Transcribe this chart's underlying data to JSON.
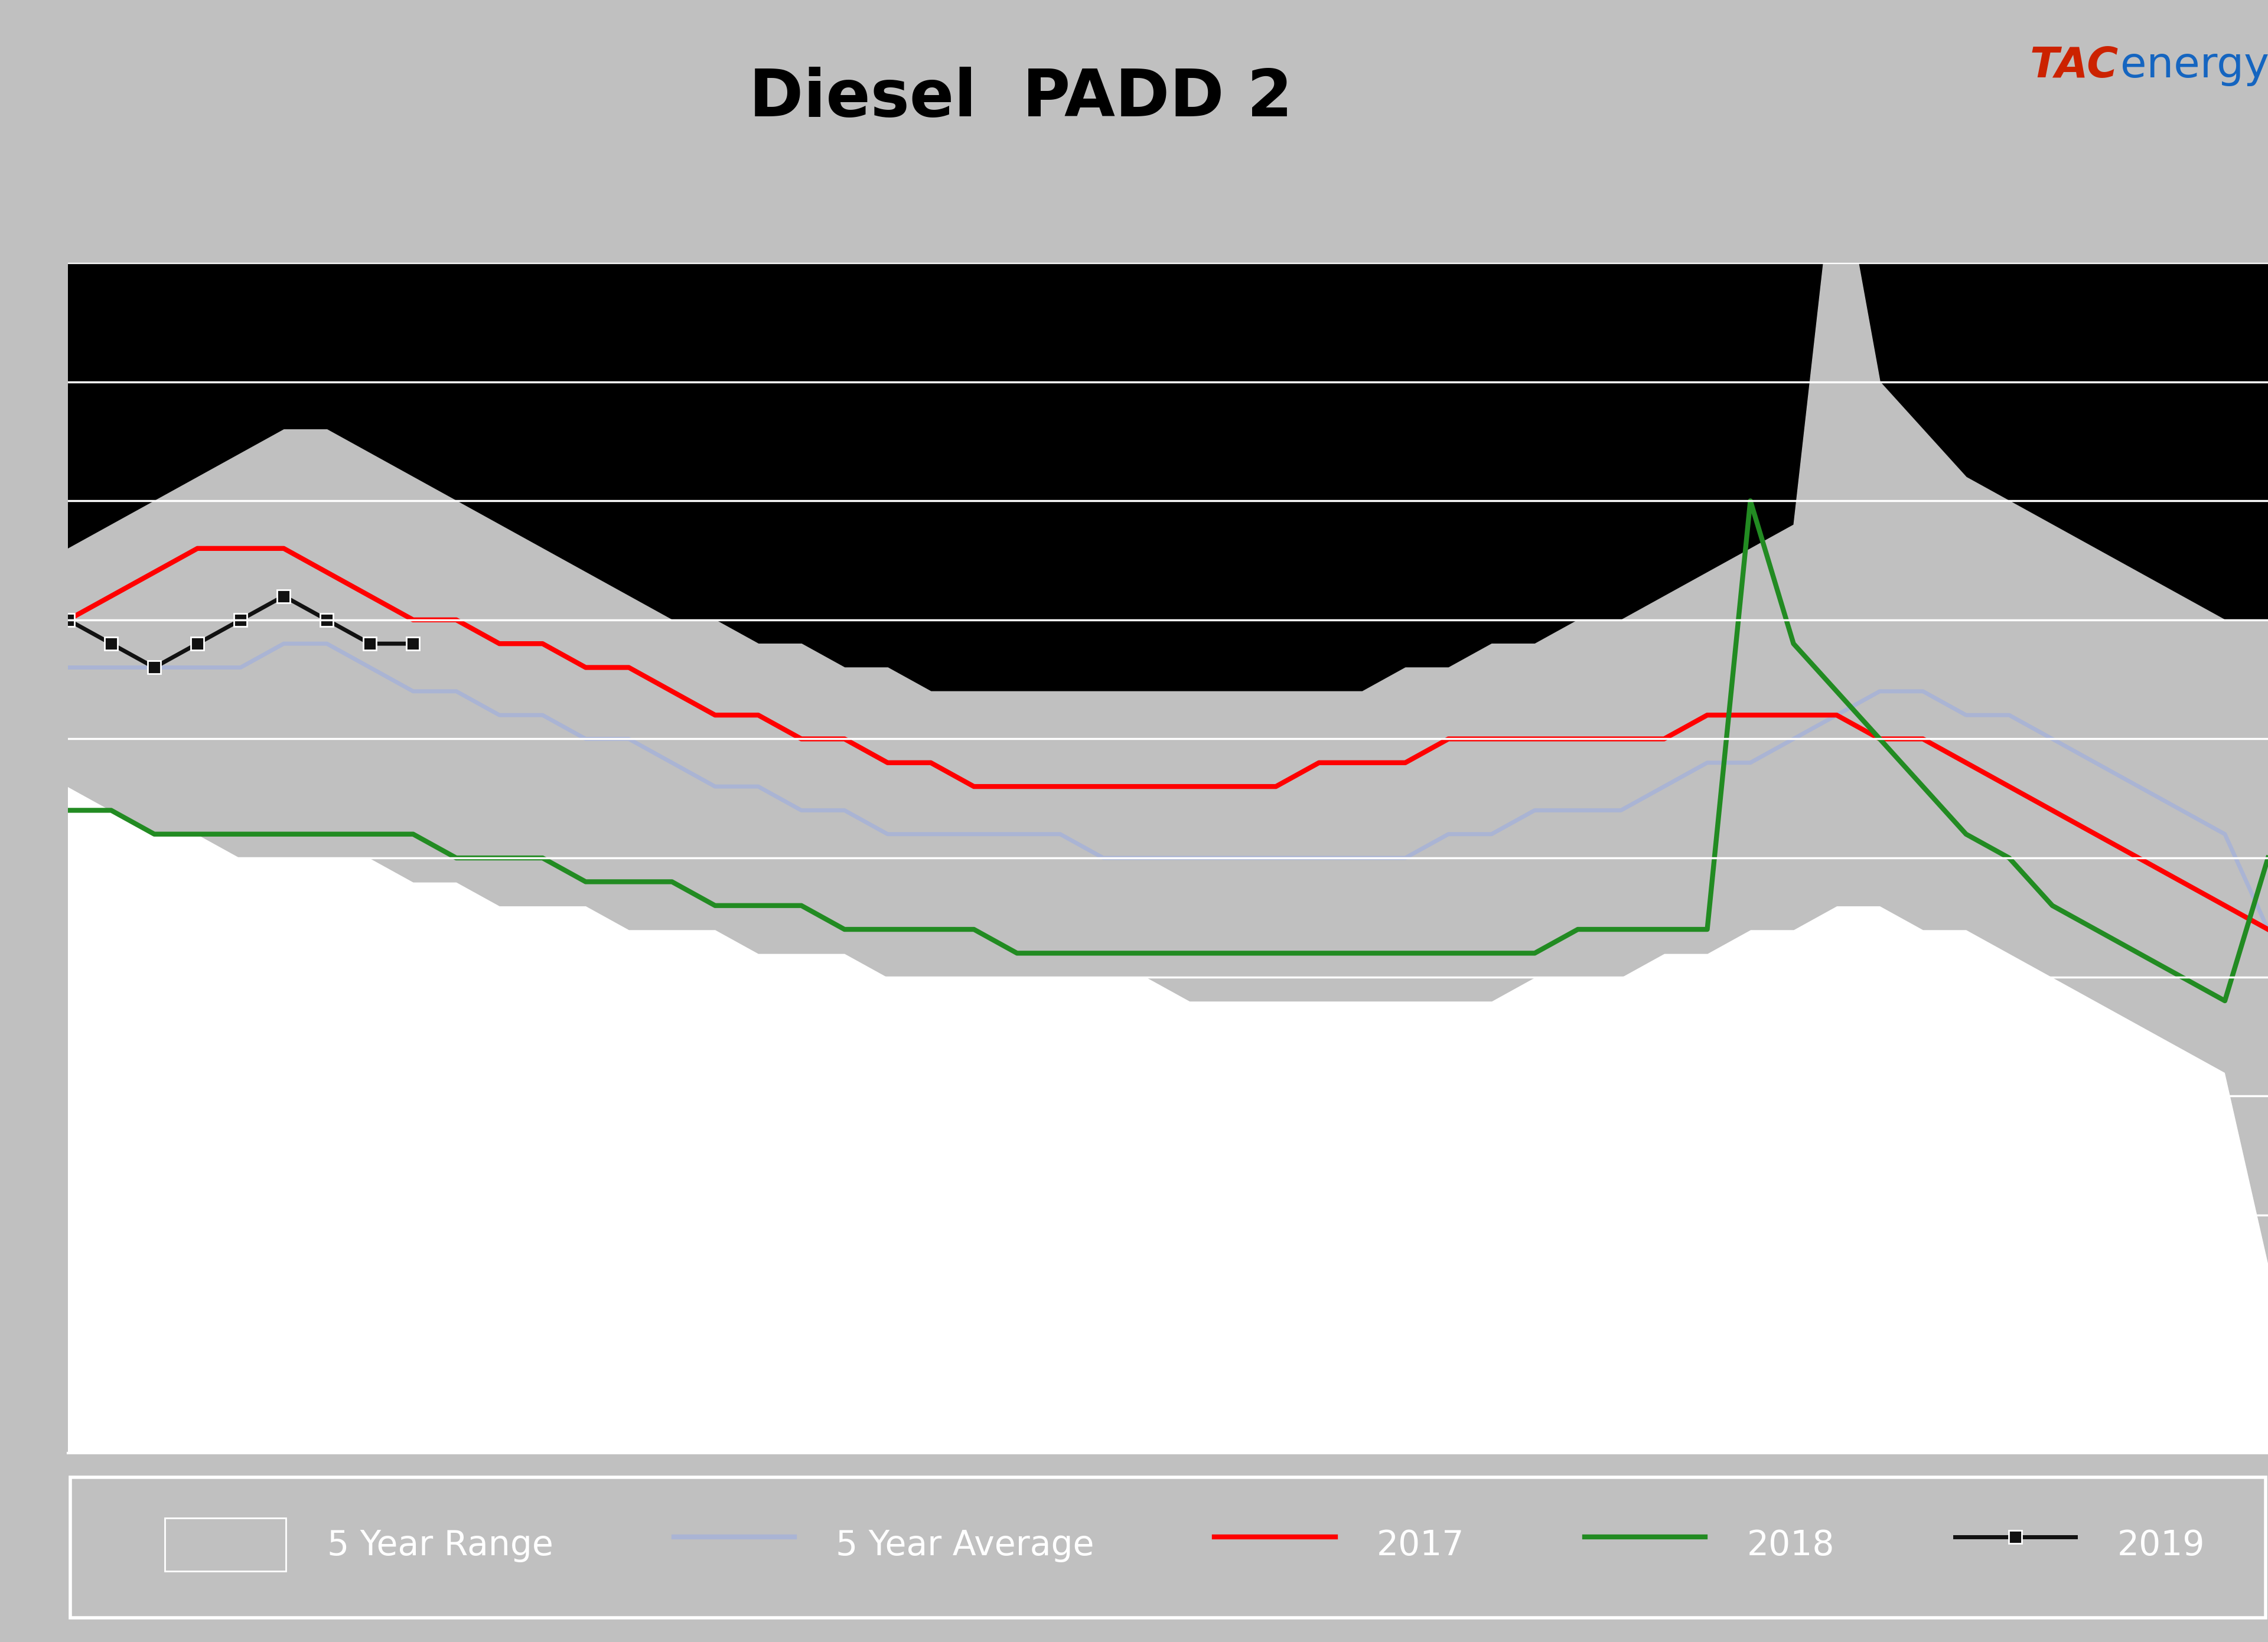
{
  "title": "Diesel  PADD 2",
  "title_bg_color": "#c0c0c0",
  "blue_bar_color": "#1565c0",
  "yellow_line_color": "#ffff00",
  "plot_bg_color": "#000000",
  "chart_inner_bg": "#ffffff",
  "grid_color": "#ffffff",
  "range_fill_color": "#c0c0c0",
  "avg_line_color": "#aab4d4",
  "line_2017_color": "#ff0000",
  "line_2018_color": "#228B22",
  "line_2019_color": "#000000",
  "logo_text_tac": "TAC",
  "logo_text_energy": "energy",
  "n_points": 52,
  "range_high": [
    38,
    39,
    40,
    41,
    42,
    43,
    43,
    42,
    41,
    40,
    39,
    38,
    37,
    36,
    35,
    35,
    34,
    34,
    33,
    33,
    32,
    32,
    32,
    32,
    32,
    32,
    32,
    32,
    32,
    32,
    32,
    33,
    33,
    34,
    34,
    35,
    35,
    36,
    37,
    38,
    39,
    55,
    45,
    43,
    41,
    40,
    39,
    38,
    37,
    36,
    35,
    35
  ],
  "range_low": [
    28,
    27,
    26,
    26,
    25,
    25,
    25,
    25,
    24,
    24,
    23,
    23,
    23,
    22,
    22,
    22,
    21,
    21,
    21,
    20,
    20,
    20,
    20,
    20,
    20,
    20,
    19,
    19,
    19,
    19,
    19,
    19,
    19,
    19,
    20,
    20,
    20,
    21,
    21,
    22,
    22,
    23,
    23,
    22,
    22,
    21,
    20,
    19,
    18,
    17,
    16,
    8
  ],
  "avg": [
    33,
    33,
    33,
    33,
    33,
    34,
    34,
    33,
    32,
    32,
    31,
    31,
    30,
    30,
    29,
    28,
    28,
    27,
    27,
    26,
    26,
    26,
    26,
    26,
    25,
    25,
    25,
    25,
    25,
    25,
    25,
    25,
    26,
    26,
    27,
    27,
    27,
    28,
    29,
    29,
    30,
    31,
    32,
    32,
    31,
    31,
    30,
    29,
    28,
    27,
    26,
    22
  ],
  "data_2017": [
    35,
    36,
    37,
    38,
    38,
    38,
    37,
    36,
    35,
    35,
    34,
    34,
    33,
    33,
    32,
    31,
    31,
    30,
    30,
    29,
    29,
    28,
    28,
    28,
    28,
    28,
    28,
    28,
    28,
    29,
    29,
    29,
    30,
    30,
    30,
    30,
    30,
    30,
    31,
    31,
    31,
    31,
    30,
    30,
    29,
    28,
    27,
    26,
    25,
    24,
    23,
    22
  ],
  "data_2018": [
    27,
    27,
    26,
    26,
    26,
    26,
    26,
    26,
    26,
    25,
    25,
    25,
    24,
    24,
    24,
    23,
    23,
    23,
    22,
    22,
    22,
    22,
    21,
    21,
    21,
    21,
    21,
    21,
    21,
    21,
    21,
    21,
    21,
    21,
    21,
    22,
    22,
    22,
    22,
    40,
    34,
    32,
    30,
    28,
    26,
    25,
    23,
    22,
    21,
    20,
    19,
    25
  ],
  "data_2019": [
    35,
    34,
    33,
    34,
    35,
    36,
    35,
    34,
    34,
    null,
    null,
    null,
    null,
    null,
    null,
    null,
    null,
    null,
    null,
    null,
    null,
    null,
    null,
    null,
    null,
    null,
    null,
    null,
    null,
    null,
    null,
    null,
    null,
    null,
    null,
    null,
    null,
    null,
    null,
    null,
    null,
    null,
    null,
    null,
    null,
    null,
    null,
    null,
    null,
    null,
    null,
    null
  ],
  "ylim_min": 0,
  "ylim_max": 50,
  "yticks": [
    5,
    10,
    15,
    20,
    25,
    30,
    35,
    40,
    45,
    50
  ]
}
